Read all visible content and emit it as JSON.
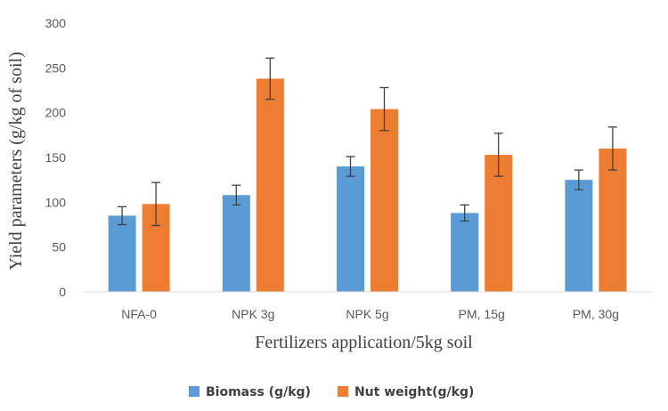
{
  "chart_data": {
    "type": "bar",
    "title": "",
    "xlabel": "Fertilizers  application/5kg  soil",
    "ylabel": "Yield parameters (g/kg of soil)",
    "ylim": [
      0,
      300
    ],
    "yticks": [
      0,
      50,
      100,
      150,
      200,
      250,
      300
    ],
    "categories": [
      "NFA-0",
      "NPK 3g",
      "NPK 5g",
      "PM, 15g",
      "PM, 30g"
    ],
    "series": [
      {
        "name": "Biomass (g/kg)",
        "color": "#5b9bd5",
        "values": [
          85,
          108,
          140,
          88,
          125
        ],
        "errors": [
          10,
          11,
          11,
          9,
          11
        ]
      },
      {
        "name": "Nut weight(g/kg)",
        "color": "#ed7d31",
        "values": [
          98,
          238,
          204,
          153,
          160
        ],
        "errors": [
          24,
          23,
          24,
          24,
          24
        ]
      }
    ],
    "grid": false,
    "legend_position": "bottom"
  }
}
